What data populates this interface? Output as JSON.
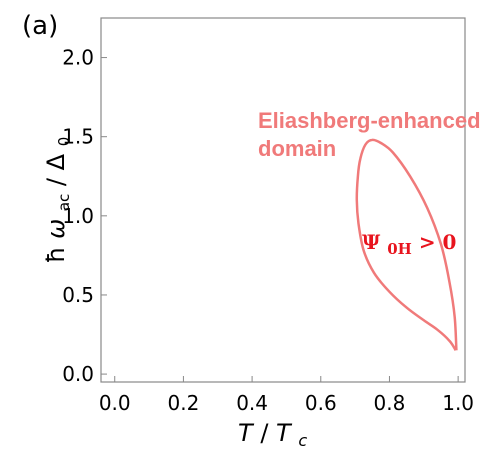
{
  "chart_data": {
    "type": "line",
    "panel_label": "(a)",
    "xlabel": {
      "main": "T",
      "sep": " / ",
      "denom": "T",
      "denom_sub": "c"
    },
    "ylabel": {
      "hbar": "ħ",
      "omega": "ω",
      "omega_sub": "ac",
      "sep": " / ",
      "delta": "Δ",
      "delta_sub": "0"
    },
    "xlim": [
      -0.04,
      1.02
    ],
    "ylim": [
      -0.05,
      2.25
    ],
    "x_ticks": [
      0.0,
      0.2,
      0.4,
      0.6,
      0.8,
      1.0
    ],
    "x_tick_labels": [
      "0.0",
      "0.2",
      "0.4",
      "0.6",
      "0.8",
      "1.0"
    ],
    "y_ticks": [
      0.0,
      0.5,
      1.0,
      1.5,
      2.0
    ],
    "y_tick_labels": [
      "0.0",
      "0.5",
      "1.0",
      "1.5",
      "2.0"
    ],
    "series": [
      {
        "color": "#f07a7a",
        "points": [
          [
            0.993,
            0.15
          ],
          [
            0.975,
            0.21
          ],
          [
            0.94,
            0.28
          ],
          [
            0.9,
            0.34
          ],
          [
            0.85,
            0.42
          ],
          [
            0.8,
            0.52
          ],
          [
            0.755,
            0.64
          ],
          [
            0.725,
            0.78
          ],
          [
            0.71,
            0.95
          ],
          [
            0.705,
            1.1
          ],
          [
            0.708,
            1.25
          ],
          [
            0.715,
            1.36
          ],
          [
            0.73,
            1.45
          ],
          [
            0.75,
            1.48
          ],
          [
            0.775,
            1.46
          ],
          [
            0.81,
            1.4
          ],
          [
            0.86,
            1.25
          ],
          [
            0.91,
            1.05
          ],
          [
            0.95,
            0.82
          ],
          [
            0.975,
            0.58
          ],
          [
            0.99,
            0.36
          ],
          [
            0.995,
            0.15
          ]
        ]
      }
    ],
    "annotations": [
      {
        "line1": "Eliashberg-enhanced",
        "line2": "domain",
        "color": "#f07a7a"
      }
    ],
    "region_label": {
      "psi": "Ψ",
      "sub": "0H",
      "rest": " > 0",
      "color": "#e8141e"
    },
    "grid": false
  }
}
